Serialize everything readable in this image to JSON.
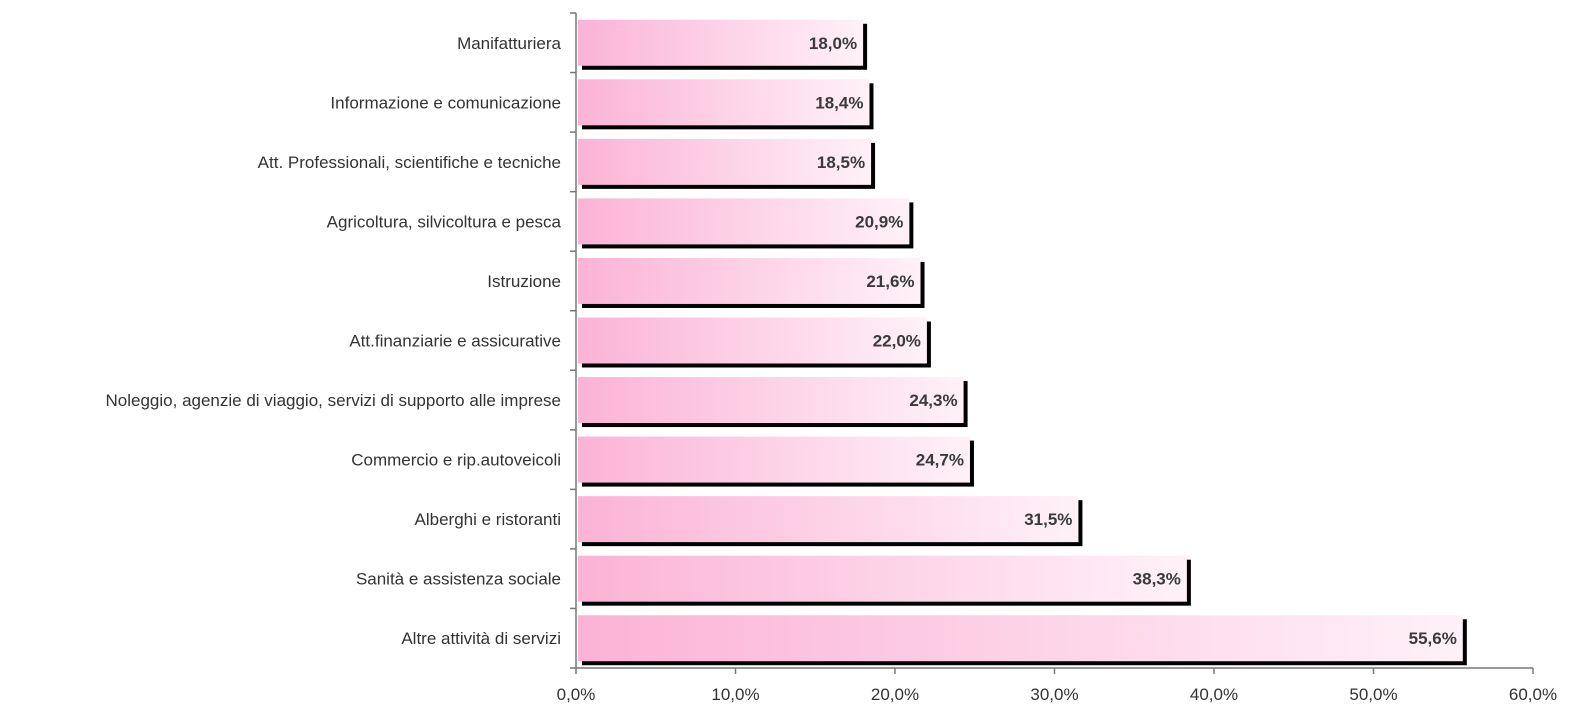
{
  "chart_data": {
    "type": "bar",
    "orientation": "horizontal",
    "categories": [
      "Manifatturiera",
      "Informazione e comunicazione",
      "Att. Professionali, scientifiche e tecniche",
      "Agricoltura, silvicoltura e pesca",
      "Istruzione",
      "Att.finanziarie e assicurative",
      "Noleggio, agenzie di viaggio, servizi di supporto alle imprese",
      "Commercio e rip.autoveicoli",
      "Alberghi e ristoranti",
      "Sanità e assistenza sociale",
      "Altre attività di servizi"
    ],
    "values": [
      18.0,
      18.4,
      18.5,
      20.9,
      21.6,
      22.0,
      24.3,
      24.7,
      31.5,
      38.3,
      55.6
    ],
    "data_labels": [
      "18,0%",
      "18,4%",
      "18,5%",
      "20,9%",
      "21,6%",
      "22,0%",
      "24,3%",
      "24,7%",
      "31,5%",
      "38,3%",
      "55,6%"
    ],
    "xlim": [
      0,
      60
    ],
    "x_ticks": [
      "0,0%",
      "10,0%",
      "20,0%",
      "30,0%",
      "40,0%",
      "50,0%",
      "60,0%"
    ],
    "grid": false,
    "legend": "none",
    "colors": {
      "bar_gradient_start": "#fbb3d5",
      "bar_gradient_end": "#fff1f8",
      "bar_shadow": "#000000",
      "axis": "#777777",
      "text": "#333333"
    }
  }
}
